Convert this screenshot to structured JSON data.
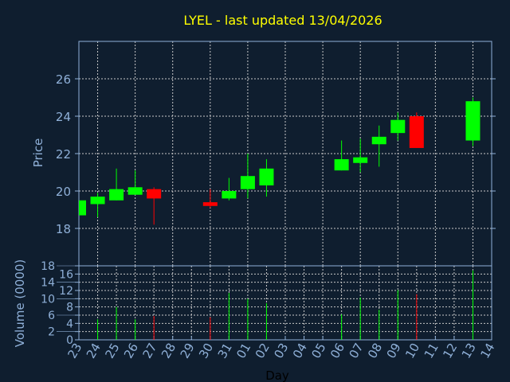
{
  "chart_data": [
    {
      "type": "candlestick",
      "title": "LYEL - last updated 13/04/2026",
      "ylabel": "Price",
      "xlabel": "Day",
      "ylim": [
        16,
        28
      ],
      "yticks": [
        18,
        20,
        22,
        24,
        26
      ],
      "grid": true,
      "x_ticks": [
        "23",
        "24",
        "25",
        "26",
        "27",
        "28",
        "29",
        "30",
        "31",
        "01",
        "02",
        "03",
        "04",
        "05",
        "06",
        "07",
        "08",
        "09",
        "10",
        "11",
        "12",
        "13",
        "14"
      ],
      "candles": [
        {
          "day": "23",
          "open": 18.7,
          "close": 19.5,
          "high": 19.5,
          "low": 18.7
        },
        {
          "day": "24",
          "open": 19.3,
          "close": 19.7,
          "high": 19.9,
          "low": 18.6
        },
        {
          "day": "25",
          "open": 19.5,
          "close": 20.1,
          "high": 21.2,
          "low": 19.5
        },
        {
          "day": "26",
          "open": 19.8,
          "close": 20.2,
          "high": 21.1,
          "low": 19.8
        },
        {
          "day": "27",
          "open": 20.1,
          "close": 19.6,
          "high": 20.2,
          "low": 18.2
        },
        {
          "day": "30",
          "open": 19.4,
          "close": 19.2,
          "high": 20.1,
          "low": 19.1
        },
        {
          "day": "31",
          "open": 19.6,
          "close": 20.0,
          "high": 20.7,
          "low": 19.5
        },
        {
          "day": "01",
          "open": 20.1,
          "close": 20.8,
          "high": 22.0,
          "low": 19.6
        },
        {
          "day": "02",
          "open": 20.3,
          "close": 21.2,
          "high": 21.7,
          "low": 19.7
        },
        {
          "day": "06",
          "open": 21.1,
          "close": 21.7,
          "high": 22.7,
          "low": 21.1
        },
        {
          "day": "07",
          "open": 21.5,
          "close": 21.8,
          "high": 22.8,
          "low": 21.0
        },
        {
          "day": "08",
          "open": 22.5,
          "close": 22.9,
          "high": 23.5,
          "low": 21.3
        },
        {
          "day": "09",
          "open": 23.1,
          "close": 23.8,
          "high": 24.2,
          "low": 22.7
        },
        {
          "day": "10",
          "open": 24.0,
          "close": 22.3,
          "high": 24.2,
          "low": 22.3
        },
        {
          "day": "13",
          "open": 22.7,
          "close": 24.8,
          "high": 25.0,
          "low": 22.4
        }
      ]
    },
    {
      "type": "bar",
      "ylabel": "Volume (0000)",
      "ylim": [
        0,
        18
      ],
      "yticks": [
        0,
        2,
        4,
        6,
        8,
        10,
        12,
        14,
        16,
        18
      ],
      "volumes": [
        {
          "day": "24",
          "value": 5.0,
          "up": true
        },
        {
          "day": "25",
          "value": 8.0,
          "up": true
        },
        {
          "day": "26",
          "value": 5.0,
          "up": true
        },
        {
          "day": "27",
          "value": 5.8,
          "up": false
        },
        {
          "day": "30",
          "value": 5.5,
          "up": false
        },
        {
          "day": "31",
          "value": 11.4,
          "up": true
        },
        {
          "day": "01",
          "value": 10.0,
          "up": true
        },
        {
          "day": "02",
          "value": 8.9,
          "up": true
        },
        {
          "day": "06",
          "value": 6.2,
          "up": true
        },
        {
          "day": "07",
          "value": 10.3,
          "up": true
        },
        {
          "day": "08",
          "value": 7.3,
          "up": true
        },
        {
          "day": "09",
          "value": 12.1,
          "up": true
        },
        {
          "day": "10",
          "value": 11.1,
          "up": false
        },
        {
          "day": "13",
          "value": 16.9,
          "up": true
        }
      ]
    }
  ],
  "colors": {
    "background": "#0f1e2f",
    "axis": "#8fb0d8",
    "title": "#ffff00",
    "up": "#00ff00",
    "down": "#ff0000",
    "grid": "#c8c8c8"
  }
}
